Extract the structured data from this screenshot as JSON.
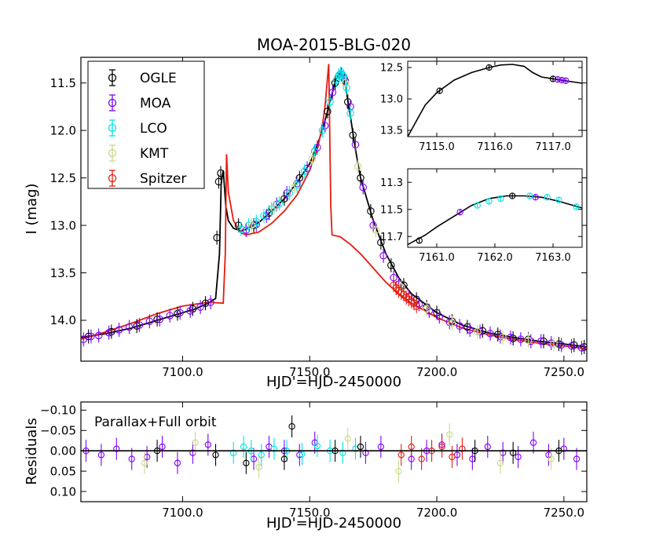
{
  "chart_data": [
    {
      "id": "main",
      "type": "scatter",
      "title": "MOA-2015-BLG-020",
      "xlabel": "HJD'=HJD-2450000",
      "ylabel": "I (mag)",
      "xlim": [
        7060,
        7259
      ],
      "ylim": [
        14.43,
        11.23
      ],
      "y_inverted": true,
      "xticks": [
        7100.0,
        7150.0,
        7200.0,
        7250.0
      ],
      "xtick_labels": [
        "7100.0",
        "7150.0",
        "7200.0",
        "7250.0"
      ],
      "yticks": [
        11.5,
        12.0,
        12.5,
        13.0,
        13.5,
        14.0
      ],
      "ytick_labels": [
        "11.5",
        "12.0",
        "12.5",
        "13.0",
        "13.5",
        "14.0"
      ],
      "legend": {
        "position": "top-left",
        "entries": [
          {
            "label": "OGLE",
            "color": "#000000"
          },
          {
            "label": "MOA",
            "color": "#7f00ff"
          },
          {
            "label": "LCO",
            "color": "#00e5e5"
          },
          {
            "label": "KMT",
            "color": "#c8d98a"
          },
          {
            "label": "Spitzer",
            "color": "#e51c0f"
          }
        ]
      },
      "series": [
        {
          "name": "Ground model",
          "style": "line",
          "color": "#000000",
          "x": [
            7060,
            7070,
            7080,
            7090,
            7100,
            7105,
            7110,
            7113,
            7114.5,
            7115.2,
            7116,
            7117,
            7118,
            7120,
            7123,
            7125,
            7130,
            7135,
            7140,
            7145,
            7150,
            7153,
            7155,
            7157,
            7158.5,
            7160,
            7161,
            7162,
            7162.5,
            7163,
            7164,
            7166,
            7168,
            7170,
            7175,
            7180,
            7185,
            7190,
            7200,
            7210,
            7220,
            7230,
            7240,
            7250,
            7259
          ],
          "y": [
            14.18,
            14.14,
            14.08,
            14.0,
            13.92,
            13.88,
            13.82,
            13.77,
            13.3,
            12.55,
            12.42,
            12.8,
            12.95,
            13.03,
            13.06,
            13.04,
            12.97,
            12.85,
            12.72,
            12.55,
            12.35,
            12.15,
            12.0,
            11.8,
            11.65,
            11.48,
            11.43,
            11.4,
            11.4,
            11.42,
            11.52,
            11.85,
            12.2,
            12.5,
            12.95,
            13.3,
            13.55,
            13.72,
            13.92,
            14.05,
            14.13,
            14.18,
            14.22,
            14.25,
            14.28
          ]
        },
        {
          "name": "Spitzer model",
          "style": "line",
          "color": "#e51c0f",
          "x": [
            7060,
            7070,
            7080,
            7090,
            7100,
            7110,
            7116,
            7116.8,
            7117.3,
            7118,
            7120,
            7123,
            7125,
            7130,
            7135,
            7140,
            7145,
            7150,
            7153,
            7155,
            7156,
            7157,
            7157.5,
            7158.3,
            7158.8,
            7162,
            7166,
            7170,
            7175,
            7180,
            7185,
            7190,
            7200,
            7210,
            7220,
            7230,
            7240,
            7250,
            7259
          ],
          "y": [
            14.2,
            14.12,
            14.03,
            13.93,
            13.85,
            13.81,
            13.82,
            13.3,
            12.25,
            12.65,
            12.95,
            13.08,
            13.1,
            13.07,
            12.98,
            12.85,
            12.68,
            12.42,
            12.2,
            11.95,
            11.75,
            11.45,
            11.3,
            12.8,
            13.1,
            13.12,
            13.2,
            13.3,
            13.45,
            13.6,
            13.72,
            13.82,
            13.97,
            14.08,
            14.15,
            14.2,
            14.24,
            14.27,
            14.3
          ]
        },
        {
          "name": "OGLE",
          "style": "points",
          "color": "#000000",
          "x": [
            7063,
            7072,
            7082,
            7090,
            7098,
            7104,
            7109,
            7113.5,
            7114.2,
            7115.0,
            7122,
            7128,
            7134,
            7140,
            7146,
            7152,
            7157,
            7160,
            7161.5,
            7163.5,
            7165,
            7167,
            7170,
            7174,
            7178,
            7182,
            7187,
            7192,
            7196,
            7200,
            7206,
            7212,
            7218,
            7224,
            7230,
            7236,
            7242,
            7248,
            7254,
            7258
          ],
          "y": [
            14.17,
            14.12,
            14.06,
            13.99,
            13.93,
            13.88,
            13.82,
            13.13,
            12.54,
            12.45,
            13.0,
            13.0,
            12.87,
            12.72,
            12.5,
            12.22,
            11.8,
            11.5,
            11.42,
            11.45,
            11.7,
            12.05,
            12.5,
            12.85,
            13.18,
            13.42,
            13.63,
            13.78,
            13.86,
            13.92,
            14.01,
            14.07,
            14.11,
            14.15,
            14.19,
            14.2,
            14.22,
            14.25,
            14.26,
            14.28
          ]
        },
        {
          "name": "MOA",
          "style": "points",
          "color": "#7f00ff",
          "x": [
            7061,
            7064,
            7067,
            7071,
            7075,
            7079,
            7083,
            7087,
            7091,
            7095,
            7099,
            7103,
            7107,
            7111,
            7125,
            7129,
            7133,
            7137,
            7141,
            7145,
            7149,
            7153,
            7156,
            7159,
            7162.5,
            7164,
            7166,
            7168,
            7171,
            7175,
            7179,
            7183,
            7185,
            7189,
            7193,
            7197,
            7201,
            7205,
            7209,
            7213,
            7217,
            7221,
            7225,
            7229,
            7233,
            7237,
            7241,
            7245,
            7249,
            7253,
            7257
          ],
          "y": [
            14.2,
            14.17,
            14.16,
            14.13,
            14.1,
            14.07,
            14.05,
            14.01,
            13.99,
            13.95,
            13.92,
            13.9,
            13.86,
            13.81,
            13.05,
            12.99,
            12.9,
            12.78,
            12.66,
            12.56,
            12.4,
            12.18,
            11.95,
            11.6,
            11.41,
            11.48,
            11.75,
            12.15,
            12.6,
            13.0,
            13.32,
            13.55,
            13.62,
            13.75,
            13.83,
            13.9,
            13.96,
            14.02,
            14.06,
            14.1,
            14.12,
            14.14,
            14.17,
            14.18,
            14.2,
            14.22,
            14.22,
            14.24,
            14.26,
            14.27,
            14.29
          ]
        },
        {
          "name": "LCO",
          "style": "points",
          "color": "#00e5e5",
          "x": [
            7123,
            7126,
            7129,
            7132,
            7135,
            7138,
            7142,
            7145,
            7148,
            7152,
            7155,
            7158,
            7160.5,
            7161.5,
            7162.2,
            7162.8,
            7163.3,
            7164.5,
            7166
          ],
          "y": [
            13.04,
            13.0,
            12.96,
            12.9,
            12.83,
            12.77,
            12.66,
            12.58,
            12.43,
            12.22,
            12.0,
            11.7,
            11.47,
            11.42,
            11.4,
            11.41,
            11.43,
            11.55,
            11.82
          ]
        },
        {
          "name": "KMT",
          "style": "points",
          "color": "#c8d98a",
          "x": [
            7127,
            7136,
            7144,
            7151,
            7164,
            7169,
            7176,
            7186,
            7196,
            7206,
            7216,
            7226,
            7236,
            7246
          ],
          "y": [
            13.0,
            12.82,
            12.6,
            12.3,
            11.5,
            12.38,
            13.05,
            13.65,
            13.88,
            14.03,
            14.12,
            14.18,
            14.21,
            14.25
          ]
        },
        {
          "name": "Spitzer",
          "style": "points",
          "color": "#e51c0f",
          "x": [
            7183,
            7184,
            7185,
            7186,
            7187,
            7188,
            7189,
            7190,
            7191,
            7192
          ],
          "y": [
            13.63,
            13.66,
            13.69,
            13.71,
            13.73,
            13.76,
            13.78,
            13.8,
            13.82,
            13.85
          ]
        }
      ]
    },
    {
      "id": "inset1",
      "type": "scatter",
      "xlim": [
        7114.5,
        7117.5
      ],
      "ylim": [
        13.6,
        12.4
      ],
      "y_inverted": true,
      "xticks": [
        7115.0,
        7116.0,
        7117.0
      ],
      "xtick_labels": [
        "7115.0",
        "7116.0",
        "7117.0"
      ],
      "yticks": [
        12.5,
        13.0,
        13.5
      ],
      "ytick_labels": [
        "12.5",
        "13.0",
        "13.5"
      ],
      "series": [
        {
          "name": "Ground model",
          "style": "line",
          "color": "#000000",
          "x": [
            7114.5,
            7114.8,
            7115.0,
            7115.3,
            7115.6,
            7115.9,
            7116.1,
            7116.3,
            7116.5,
            7116.65,
            7116.8,
            7117.0,
            7117.2,
            7117.5
          ],
          "y": [
            13.6,
            13.1,
            12.9,
            12.7,
            12.58,
            12.5,
            12.46,
            12.45,
            12.48,
            12.58,
            12.65,
            12.68,
            12.71,
            12.75
          ]
        },
        {
          "name": "OGLE",
          "style": "points",
          "color": "#000000",
          "x": [
            7115.05,
            7115.9,
            7117.0
          ],
          "y": [
            12.87,
            12.5,
            12.68
          ]
        },
        {
          "name": "MOA",
          "style": "points",
          "color": "#7f00ff",
          "x": [
            7117.08,
            7117.15,
            7117.22
          ],
          "y": [
            12.69,
            12.7,
            12.71
          ]
        }
      ]
    },
    {
      "id": "inset2",
      "type": "scatter",
      "xlim": [
        7160.5,
        7163.5
      ],
      "ylim": [
        11.78,
        11.2
      ],
      "y_inverted": true,
      "xticks": [
        7161.0,
        7162.0,
        7163.0
      ],
      "xtick_labels": [
        "7161.0",
        "7162.0",
        "7163.0"
      ],
      "yticks": [
        11.3,
        11.5,
        11.7
      ],
      "ytick_labels": [
        "11.3",
        "11.5",
        "11.7"
      ],
      "series": [
        {
          "name": "Ground model",
          "style": "line",
          "color": "#000000",
          "x": [
            7160.5,
            7160.8,
            7161.0,
            7161.3,
            7161.6,
            7161.9,
            7162.2,
            7162.5,
            7162.8,
            7163.1,
            7163.5
          ],
          "y": [
            11.76,
            11.69,
            11.63,
            11.55,
            11.47,
            11.42,
            11.4,
            11.4,
            11.41,
            11.44,
            11.49
          ]
        },
        {
          "name": "OGLE",
          "style": "points",
          "color": "#000000",
          "x": [
            7160.7,
            7162.3
          ],
          "y": [
            11.73,
            11.4
          ]
        },
        {
          "name": "MOA",
          "style": "points",
          "color": "#7f00ff",
          "x": [
            7161.4,
            7162.7
          ],
          "y": [
            11.52,
            11.41
          ]
        },
        {
          "name": "LCO",
          "style": "points",
          "color": "#00e5e5",
          "x": [
            7161.7,
            7161.9,
            7162.1,
            7162.6,
            7162.9,
            7163.1,
            7163.4
          ],
          "y": [
            11.47,
            11.44,
            11.42,
            11.4,
            11.41,
            11.43,
            11.48
          ]
        }
      ]
    },
    {
      "id": "residuals",
      "type": "scatter",
      "xlabel": "HJD'=HJD-2450000",
      "ylabel": "Residuals",
      "annotation": "Parallax+Full orbit",
      "xlim": [
        7060,
        7259
      ],
      "ylim": [
        0.125,
        -0.12
      ],
      "y_inverted": true,
      "xticks": [
        7100.0,
        7150.0,
        7200.0,
        7250.0
      ],
      "xtick_labels": [
        "7100.0",
        "7150.0",
        "7200.0",
        "7250.0"
      ],
      "yticks": [
        -0.1,
        -0.05,
        0.0,
        0.05,
        0.1
      ],
      "ytick_labels": [
        "−0.10",
        "−0.05",
        "0.00",
        "0.05",
        "0.10"
      ],
      "series": [
        {
          "name": "MOA",
          "style": "points",
          "color": "#7f00ff",
          "x": [
            7062,
            7068,
            7074,
            7080,
            7086,
            7092,
            7098,
            7104,
            7110,
            7128,
            7134,
            7140,
            7146,
            7152,
            7172,
            7178,
            7190,
            7196,
            7202,
            7208,
            7214,
            7220,
            7226,
            7232,
            7238,
            7244,
            7250,
            7255
          ],
          "y": [
            0.0,
            0.01,
            -0.005,
            0.02,
            0.015,
            -0.01,
            0.03,
            0.005,
            -0.015,
            0.02,
            -0.01,
            0.0,
            0.01,
            -0.02,
            0.005,
            -0.01,
            0.02,
            0.0,
            -0.015,
            0.01,
            0.02,
            -0.01,
            0.005,
            0.015,
            -0.02,
            0.01,
            -0.005,
            0.02
          ]
        },
        {
          "name": "KMT",
          "style": "points",
          "color": "#c8d98a",
          "x": [
            7085,
            7105,
            7130,
            7165,
            7185,
            7205,
            7225,
            7245
          ],
          "y": [
            0.03,
            -0.02,
            0.04,
            -0.03,
            0.05,
            -0.04,
            0.03,
            0.02
          ]
        },
        {
          "name": "LCO",
          "style": "points",
          "color": "#00e5e5",
          "x": [
            7120,
            7124,
            7127,
            7131,
            7136,
            7141,
            7147,
            7153,
            7158,
            7163,
            7168
          ],
          "y": [
            0.005,
            -0.01,
            0.0,
            0.01,
            -0.005,
            0.0,
            0.008,
            -0.012,
            0.0,
            0.005,
            -0.005
          ]
        },
        {
          "name": "Spitzer",
          "style": "points",
          "color": "#e51c0f",
          "x": [
            7186,
            7190,
            7194,
            7198,
            7202,
            7206,
            7210
          ],
          "y": [
            0.01,
            -0.01,
            0.02,
            0.0,
            -0.01,
            0.015,
            -0.005
          ]
        },
        {
          "name": "OGLE",
          "style": "points",
          "color": "#000000",
          "x": [
            7090,
            7113,
            7125,
            7140,
            7143,
            7160,
            7170,
            7215,
            7230,
            7248
          ],
          "y": [
            0.0,
            0.01,
            0.03,
            0.02,
            -0.06,
            0.0,
            -0.01,
            0.0,
            0.005,
            0.0
          ]
        },
        {
          "name": "Zero line",
          "style": "line",
          "color": "#000000",
          "x": [
            7060,
            7259
          ],
          "y": [
            0.0,
            0.0
          ]
        }
      ]
    }
  ]
}
